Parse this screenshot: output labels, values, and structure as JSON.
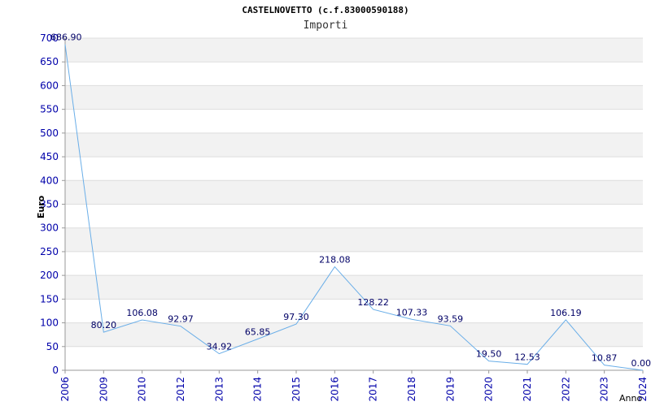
{
  "chart_data": {
    "type": "line",
    "title": "CASTELNOVETTO (c.f.83000590188)",
    "subtitle": "Importi",
    "xlabel": "Anno",
    "ylabel": "Euro",
    "categories": [
      "2006",
      "2009",
      "2010",
      "2012",
      "2013",
      "2014",
      "2015",
      "2016",
      "2017",
      "2018",
      "2019",
      "2020",
      "2021",
      "2022",
      "2023",
      "2024"
    ],
    "series": [
      {
        "values": [
          686.9,
          80.2,
          106.08,
          92.97,
          34.92,
          65.85,
          97.3,
          218.08,
          128.22,
          107.33,
          93.59,
          19.5,
          12.53,
          106.19,
          10.87,
          0.0
        ],
        "labels": [
          "686.90",
          "80.20",
          "106.08",
          "92.97",
          "34.92",
          "65.85",
          "97.30",
          "218.08",
          "128.22",
          "107.33",
          "93.59",
          "19.50",
          "12.53",
          "106.19",
          "10.87",
          "0.00"
        ]
      }
    ],
    "ylim": [
      0,
      700
    ],
    "yticks": [
      "0",
      "50",
      "100",
      "150",
      "200",
      "250",
      "300",
      "350",
      "400",
      "450",
      "500",
      "550",
      "600",
      "650",
      "700"
    ],
    "grid": true,
    "colors": {
      "line": "#6aaee8",
      "band": "#f2f2f2",
      "grid": "#dddddd",
      "ticks": "#0000aa"
    }
  }
}
